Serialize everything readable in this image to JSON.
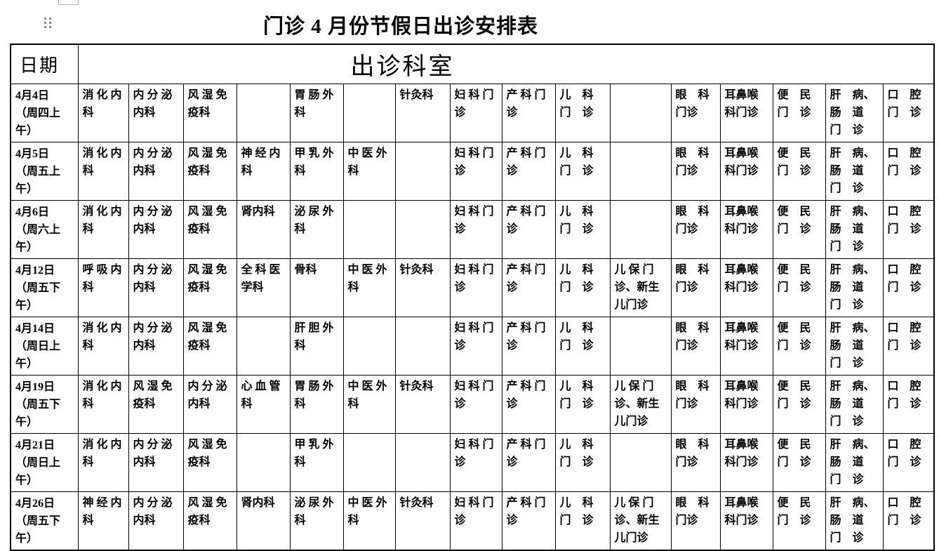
{
  "page": {
    "title": "门诊 4 月份节假日出诊安排表"
  },
  "colors": {
    "background": "#ffffff",
    "border": "#000000",
    "drag_handle_dots": "#8a8a8a"
  },
  "icons": {
    "drag_handle": "table-drag-handle-icon"
  },
  "table": {
    "header": {
      "date_label": "日期",
      "departments_label": "出诊科室"
    },
    "rows": [
      {
        "date": "4月4日\n（周四上\n午）",
        "cells": [
          "消 化 内\n科",
          "内 分 泌\n内科",
          "风 湿 免\n疫科",
          "",
          "胃 肠 外\n科",
          "",
          "针灸科",
          "妇 科 门\n诊",
          "产 科 门\n诊",
          "儿　科\n门　诊",
          "",
          "眼　科\n门诊",
          "耳鼻喉\n科门诊",
          "便　民\n门　诊",
          "肝　病、\n肠　道\n门　诊",
          "口　腔\n门　诊"
        ]
      },
      {
        "date": "4月5日\n（周五上\n午）",
        "cells": [
          "消 化 内\n科",
          "内 分 泌\n内科",
          "风 湿 免\n疫科",
          "神 经 内\n科",
          "甲 乳 外\n科",
          "中 医 外\n科",
          "",
          "妇 科 门\n诊",
          "产 科 门\n诊",
          "儿　科\n门　诊",
          "",
          "眼　科\n门诊",
          "耳鼻喉\n科门诊",
          "便　民\n门　诊",
          "肝　病、\n肠　道\n门　诊",
          "口　腔\n门　诊"
        ]
      },
      {
        "date": "4月6日\n（周六上\n午）",
        "cells": [
          "消 化 内\n科",
          "内 分 泌\n内科",
          "风 湿 免\n疫科",
          "肾内科",
          "泌 尿 外\n科",
          "",
          "",
          "妇 科 门\n诊",
          "产 科 门\n诊",
          "儿　科\n门　诊",
          "",
          "眼　科\n门诊",
          "耳鼻喉\n科门诊",
          "便　民\n门　诊",
          "肝　病、\n肠　道\n门　诊",
          "口　腔\n门　诊"
        ]
      },
      {
        "date": "4月12日\n（周五下\n午）",
        "cells": [
          "呼 吸 内\n科",
          "内 分 泌\n内科",
          "风 湿 免\n疫科",
          "全 科 医\n学科",
          "骨科",
          "中 医 外\n科",
          "针灸科",
          "妇 科 门\n诊",
          "产 科 门\n诊",
          "儿　科\n门　诊",
          "儿 保 门\n诊、新生\n儿门诊",
          "眼　科\n门诊",
          "耳鼻喉\n科门诊",
          "便　民\n门　诊",
          "肝　病、\n肠　道\n门　诊",
          "口　腔\n门　诊"
        ]
      },
      {
        "date": "4月14日\n（周日上\n午）",
        "cells": [
          "消 化 内\n科",
          "内 分 泌\n内科",
          "风 湿 免\n疫科",
          "",
          "肝 胆 外\n科",
          "",
          "",
          "妇 科 门\n诊",
          "产 科 门\n诊",
          "儿　科\n门　诊",
          "",
          "眼　科\n门诊",
          "耳鼻喉\n科门诊",
          "便　民\n门　诊",
          "肝　病、\n肠　道\n门　诊",
          "口　腔\n门　诊"
        ]
      },
      {
        "date": "4月19日\n（周五下\n午）",
        "cells": [
          "消 化 内\n科",
          "风 湿 免\n疫科",
          "内 分 泌\n内科",
          "心 血 管\n科",
          "胃 肠 外\n科",
          "中 医 外\n科",
          "针灸科",
          "妇 科 门\n诊",
          "产 科 门\n诊",
          "儿　科\n门　诊",
          "儿 保 门\n诊、新生\n儿门诊",
          "眼　科\n门诊",
          "耳鼻喉\n科门诊",
          "便　民\n门　诊",
          "肝　病、\n肠　道\n门　诊",
          "口　腔\n门　诊"
        ]
      },
      {
        "date": "4月21日\n（周日上\n午）",
        "cells": [
          "消 化 内\n科",
          "内 分 泌\n内科",
          "风 湿 免\n疫科",
          "",
          "甲 乳 外\n科",
          "",
          "",
          "妇 科 门\n诊",
          "产 科 门\n诊",
          "儿　科\n门　诊",
          "",
          "眼　科\n门诊",
          "耳鼻喉\n科门诊",
          "便　民\n门　诊",
          "肝　病、\n肠　道\n门　诊",
          "口　腔\n门　诊"
        ]
      },
      {
        "date": "4月26日\n（周五下\n午）",
        "cells": [
          "神 经 内\n科",
          "内 分 泌\n内科",
          "风 湿 免\n疫科",
          "肾内科",
          "泌 尿 外\n科",
          "中 医 外\n科",
          "针灸科",
          "妇 科 门\n诊",
          "产 科 门\n诊",
          "儿　科\n门　诊",
          "儿 保 门\n诊、新生\n儿门诊",
          "眼　科\n门诊",
          "耳鼻喉\n科门诊",
          "便　民\n门　诊",
          "肝　病、\n肠　道\n门　诊",
          "口　腔\n门　诊"
        ]
      }
    ]
  }
}
